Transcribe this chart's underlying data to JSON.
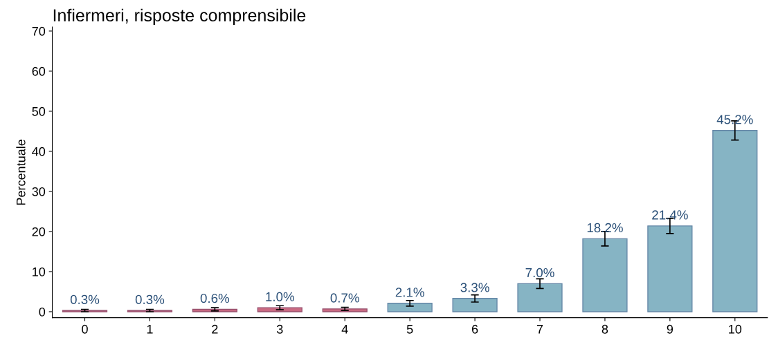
{
  "chart_data": {
    "type": "bar",
    "title": "Infiermeri, risposte comprensibile",
    "ylabel": "Percentuale",
    "categories": [
      "0",
      "1",
      "2",
      "3",
      "4",
      "5",
      "6",
      "7",
      "8",
      "9",
      "10"
    ],
    "values": [
      0.3,
      0.3,
      0.6,
      1.0,
      0.7,
      2.1,
      3.3,
      7.0,
      18.2,
      21.4,
      45.2
    ],
    "errors": [
      0.3,
      0.3,
      0.4,
      0.5,
      0.4,
      0.7,
      0.9,
      1.2,
      1.8,
      1.9,
      2.4
    ],
    "colors": [
      "#c96a82",
      "#c96a82",
      "#c96a82",
      "#c96a82",
      "#c96a82",
      "#86b4c4",
      "#86b4c4",
      "#86b4c4",
      "#86b4c4",
      "#86b4c4",
      "#86b4c4"
    ],
    "value_labels": [
      "0.3%",
      "0.3%",
      "0.6%",
      "1.0%",
      "0.7%",
      "2.1%",
      "3.3%",
      "7.0%",
      "18.2%",
      "21.4%",
      "45.2%"
    ],
    "ylim": [
      -1.5,
      71
    ],
    "yticks": [
      0,
      10,
      20,
      30,
      40,
      50,
      60,
      70
    ],
    "grid": false,
    "legend": false
  }
}
